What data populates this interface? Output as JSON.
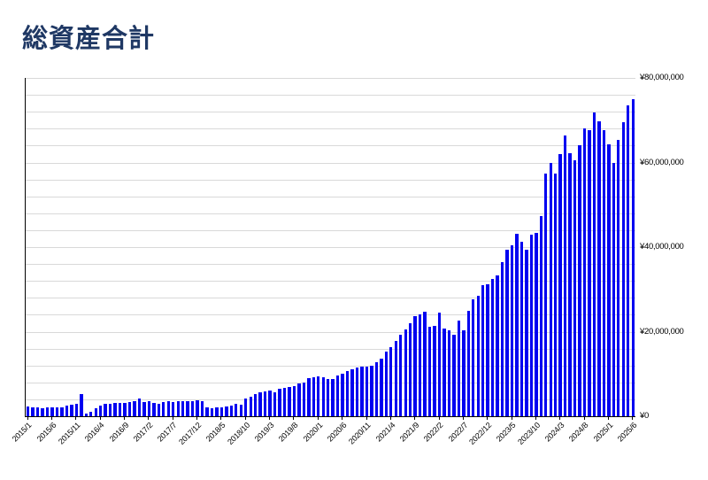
{
  "title": "総資産合計",
  "chart_data": {
    "type": "bar",
    "title": "総資産合計",
    "series_name": "総資産合計",
    "legend": "none",
    "grid": true,
    "ylim": [
      0,
      80000000
    ],
    "y_minor_gridline_unit": 4000000,
    "x_tick_interval": 5,
    "y_ticks": [
      {
        "value": 0,
        "label": "¥0"
      },
      {
        "value": 20000000,
        "label": "¥20,000,000"
      },
      {
        "value": 40000000,
        "label": "¥40,000,000"
      },
      {
        "value": 60000000,
        "label": "¥60,000,000"
      },
      {
        "value": 80000000,
        "label": "¥80,000,000"
      }
    ],
    "x_tick_labels": [
      "2015/1",
      "2015/6",
      "2015/11",
      "2016/4",
      "2016/9",
      "2017/2",
      "2017/7",
      "2017/12",
      "2018/5",
      "2018/10",
      "2019/3",
      "2019/8",
      "2020/1",
      "2020/6",
      "2020/11",
      "2021/4",
      "2021/9",
      "2022/2",
      "2022/7",
      "2022/12",
      "2023/5",
      "2023/10",
      "2024/3",
      "2024/8",
      "2025/1",
      "2025/6"
    ],
    "x": [
      "2015/1",
      "2015/2",
      "2015/3",
      "2015/4",
      "2015/5",
      "2015/6",
      "2015/7",
      "2015/8",
      "2015/9",
      "2015/10",
      "2015/11",
      "2015/12",
      "2016/1",
      "2016/2",
      "2016/3",
      "2016/4",
      "2016/5",
      "2016/6",
      "2016/7",
      "2016/8",
      "2016/9",
      "2016/10",
      "2016/11",
      "2016/12",
      "2017/1",
      "2017/2",
      "2017/3",
      "2017/4",
      "2017/5",
      "2017/6",
      "2017/7",
      "2017/8",
      "2017/9",
      "2017/10",
      "2017/11",
      "2017/12",
      "2018/1",
      "2018/2",
      "2018/3",
      "2018/4",
      "2018/5",
      "2018/6",
      "2018/7",
      "2018/8",
      "2018/9",
      "2018/10",
      "2018/11",
      "2018/12",
      "2019/1",
      "2019/2",
      "2019/3",
      "2019/4",
      "2019/5",
      "2019/6",
      "2019/7",
      "2019/8",
      "2019/9",
      "2019/10",
      "2019/11",
      "2019/12",
      "2020/1",
      "2020/2",
      "2020/3",
      "2020/4",
      "2020/5",
      "2020/6",
      "2020/7",
      "2020/8",
      "2020/9",
      "2020/10",
      "2020/11",
      "2020/12",
      "2021/1",
      "2021/2",
      "2021/3",
      "2021/4",
      "2021/5",
      "2021/6",
      "2021/7",
      "2021/8",
      "2021/9",
      "2021/10",
      "2021/11",
      "2021/12",
      "2022/1",
      "2022/2",
      "2022/3",
      "2022/4",
      "2022/5",
      "2022/6",
      "2022/7",
      "2022/8",
      "2022/9",
      "2022/10",
      "2022/11",
      "2022/12",
      "2023/1",
      "2023/2",
      "2023/3",
      "2023/4",
      "2023/5",
      "2023/6",
      "2023/7",
      "2023/8",
      "2023/9",
      "2023/10",
      "2023/11",
      "2023/12",
      "2024/1",
      "2024/2",
      "2024/3",
      "2024/4",
      "2024/5",
      "2024/6",
      "2024/7",
      "2024/8",
      "2024/9",
      "2024/10",
      "2024/11",
      "2024/12",
      "2025/1",
      "2025/2",
      "2025/3",
      "2025/4",
      "2025/5",
      "2025/6"
    ],
    "values": [
      2300000,
      2100000,
      2000000,
      1900000,
      2100000,
      2200000,
      2100000,
      2200000,
      2500000,
      2700000,
      2900000,
      5300000,
      600000,
      1100000,
      1900000,
      2500000,
      2900000,
      3000000,
      3100000,
      3200000,
      3100000,
      3300000,
      3600000,
      4200000,
      3400000,
      3500000,
      3100000,
      2900000,
      3400000,
      3500000,
      3400000,
      3600000,
      3600000,
      3500000,
      3600000,
      3800000,
      3600000,
      2100000,
      1900000,
      2100000,
      2200000,
      2400000,
      2600000,
      2900000,
      2700000,
      4200000,
      4700000,
      5200000,
      5700000,
      5900000,
      6100000,
      5700000,
      6600000,
      6800000,
      7000000,
      7100000,
      7700000,
      8000000,
      9100000,
      9200000,
      9400000,
      9200000,
      8700000,
      8900000,
      9600000,
      10100000,
      10600000,
      11200000,
      11500000,
      11700000,
      11700000,
      11900000,
      12700000,
      13600000,
      15200000,
      16400000,
      17800000,
      19300000,
      20600000,
      22000000,
      23700000,
      24100000,
      24800000,
      21100000,
      21300000,
      24600000,
      20700000,
      20400000,
      19300000,
      22700000,
      20400000,
      25000000,
      27600000,
      28500000,
      31100000,
      31300000,
      32500000,
      33300000,
      36400000,
      39400000,
      40500000,
      43100000,
      41300000,
      39400000,
      42900000,
      43400000,
      47300000,
      57400000,
      59800000,
      57400000,
      61900000,
      66300000,
      62100000,
      60500000,
      64000000,
      68100000,
      67700000,
      71900000,
      69800000,
      67700000,
      64200000,
      60000000,
      65300000,
      69500000,
      73500000,
      74900000
    ],
    "colors": {
      "bar": "#0000F0",
      "gridline": "#D9D9D9",
      "axis": "#000000",
      "title": "#1F3864",
      "background": "#FFFFFF"
    }
  }
}
